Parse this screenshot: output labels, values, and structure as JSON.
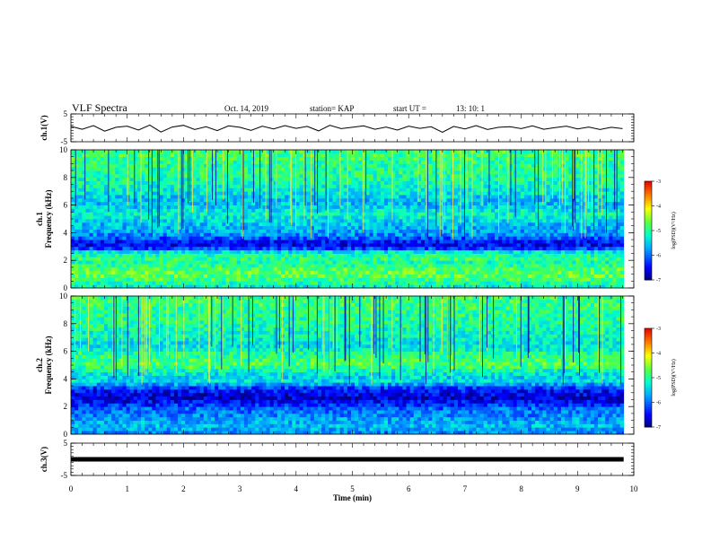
{
  "header": {
    "title": "VLF Spectra",
    "date": "Oct. 14, 2019",
    "station": "station= KAP",
    "start_ut_label": "start  UT  =",
    "start_ut_value": "13: 10: 1"
  },
  "chart_data": [
    {
      "type": "line",
      "name": "ch1-waveform",
      "ylabel": "ch.1(V)",
      "ylim": [
        -5,
        5
      ],
      "yticks": [
        5,
        -5
      ],
      "xlim": [
        0,
        10
      ],
      "x": [
        0,
        0.2,
        0.4,
        0.6,
        0.8,
        1.0,
        1.2,
        1.4,
        1.6,
        1.8,
        2.0,
        2.2,
        2.4,
        2.6,
        2.8,
        3.0,
        3.2,
        3.4,
        3.6,
        3.8,
        4.0,
        4.2,
        4.4,
        4.6,
        4.8,
        5.0,
        5.2,
        5.4,
        5.6,
        5.8,
        6.0,
        6.2,
        6.4,
        6.6,
        6.8,
        7.0,
        7.2,
        7.4,
        7.6,
        7.8,
        8.0,
        8.2,
        8.4,
        8.6,
        8.8,
        9.0,
        9.2,
        9.4,
        9.6,
        9.8
      ],
      "values": [
        0.5,
        -0.5,
        0.8,
        -1.2,
        0.2,
        0.6,
        -0.8,
        1.0,
        -1.5,
        0.3,
        0.9,
        -0.6,
        0.4,
        -1.0,
        0.7,
        0.2,
        -0.9,
        0.6,
        -0.4,
        0.8,
        -0.2,
        0.5,
        -1.1,
        0.9,
        -0.3,
        0.2,
        0.7,
        -0.5,
        0.3,
        -0.8,
        0.6,
        -0.2,
        0.4,
        -1.6,
        0.5,
        -0.4,
        0.8,
        -0.6,
        0.2,
        0.4,
        -0.3,
        0.7,
        -0.5,
        0.1,
        0.6,
        -0.4,
        0.3,
        -0.6,
        0.2,
        -0.3
      ]
    },
    {
      "type": "heatmap",
      "name": "ch1-spectrogram",
      "ylabel": "ch.1\nFrequency  (kHz)",
      "xlim": [
        0,
        9.82
      ],
      "ylim": [
        0,
        10
      ],
      "yticks": [
        0,
        2,
        4,
        6,
        8,
        10
      ],
      "colorbar": {
        "label": "log(PSD)(V²/Hz)",
        "range": [
          -7,
          -3
        ],
        "ticks": [
          "-3",
          "-4",
          "-5",
          "-6",
          "-7"
        ]
      },
      "band_profile_khz_logpsd": [
        [
          0.2,
          -5.2
        ],
        [
          0.6,
          -4.9
        ],
        [
          1.0,
          -4.7
        ],
        [
          1.4,
          -4.8
        ],
        [
          1.8,
          -5.1
        ],
        [
          2.2,
          -4.9
        ],
        [
          2.6,
          -5.3
        ],
        [
          3.0,
          -6.6
        ],
        [
          3.4,
          -6.4
        ],
        [
          3.8,
          -5.9
        ],
        [
          4.2,
          -5.7
        ],
        [
          4.6,
          -5.6
        ],
        [
          5.0,
          -5.4
        ],
        [
          5.4,
          -5.2
        ],
        [
          5.8,
          -5.5
        ],
        [
          6.2,
          -5.6
        ],
        [
          6.6,
          -5.5
        ],
        [
          7.0,
          -5.3
        ],
        [
          7.4,
          -5.2
        ],
        [
          7.8,
          -5.1
        ],
        [
          8.2,
          -5.0
        ],
        [
          8.6,
          -5.0
        ],
        [
          9.0,
          -5.0
        ],
        [
          9.4,
          -4.9
        ],
        [
          9.8,
          -4.9
        ]
      ]
    },
    {
      "type": "heatmap",
      "name": "ch2-spectrogram",
      "ylabel": "ch.2\nFrequency  (kHz)",
      "xlim": [
        0,
        9.82
      ],
      "ylim": [
        0,
        10
      ],
      "yticks": [
        0,
        2,
        4,
        6,
        8,
        10
      ],
      "colorbar": {
        "label": "log(PSD)(V²/Hz)",
        "range": [
          -7,
          -3
        ],
        "ticks": [
          "-3",
          "-4",
          "-5",
          "-6",
          "-7"
        ]
      },
      "band_profile_khz_logpsd": [
        [
          0.2,
          -5.8
        ],
        [
          0.6,
          -5.6
        ],
        [
          1.0,
          -5.7
        ],
        [
          1.4,
          -5.9
        ],
        [
          1.8,
          -6.0
        ],
        [
          2.2,
          -6.4
        ],
        [
          2.6,
          -6.7
        ],
        [
          3.0,
          -6.6
        ],
        [
          3.4,
          -6.2
        ],
        [
          3.8,
          -5.4
        ],
        [
          4.2,
          -5.5
        ],
        [
          4.6,
          -5.2
        ],
        [
          5.0,
          -4.8
        ],
        [
          5.4,
          -4.9
        ],
        [
          5.8,
          -5.0
        ],
        [
          6.2,
          -5.3
        ],
        [
          6.6,
          -5.4
        ],
        [
          7.0,
          -5.2
        ],
        [
          7.4,
          -5.2
        ],
        [
          7.8,
          -5.1
        ],
        [
          8.2,
          -5.0
        ],
        [
          8.6,
          -5.0
        ],
        [
          9.0,
          -5.0
        ],
        [
          9.4,
          -4.9
        ],
        [
          9.8,
          -4.9
        ]
      ]
    },
    {
      "type": "line",
      "name": "ch3-waveform",
      "ylabel": "ch.3(V)",
      "ylim": [
        -5,
        5
      ],
      "yticks": [
        5,
        -5
      ],
      "xlim": [
        0,
        10
      ],
      "x": [
        0,
        9.82
      ],
      "values": [
        0,
        0
      ]
    }
  ],
  "xaxis": {
    "label": "Time  (min)",
    "range": [
      0,
      10
    ],
    "ticks": [
      "0",
      "1",
      "2",
      "3",
      "4",
      "5",
      "6",
      "7",
      "8",
      "9",
      "10"
    ]
  }
}
